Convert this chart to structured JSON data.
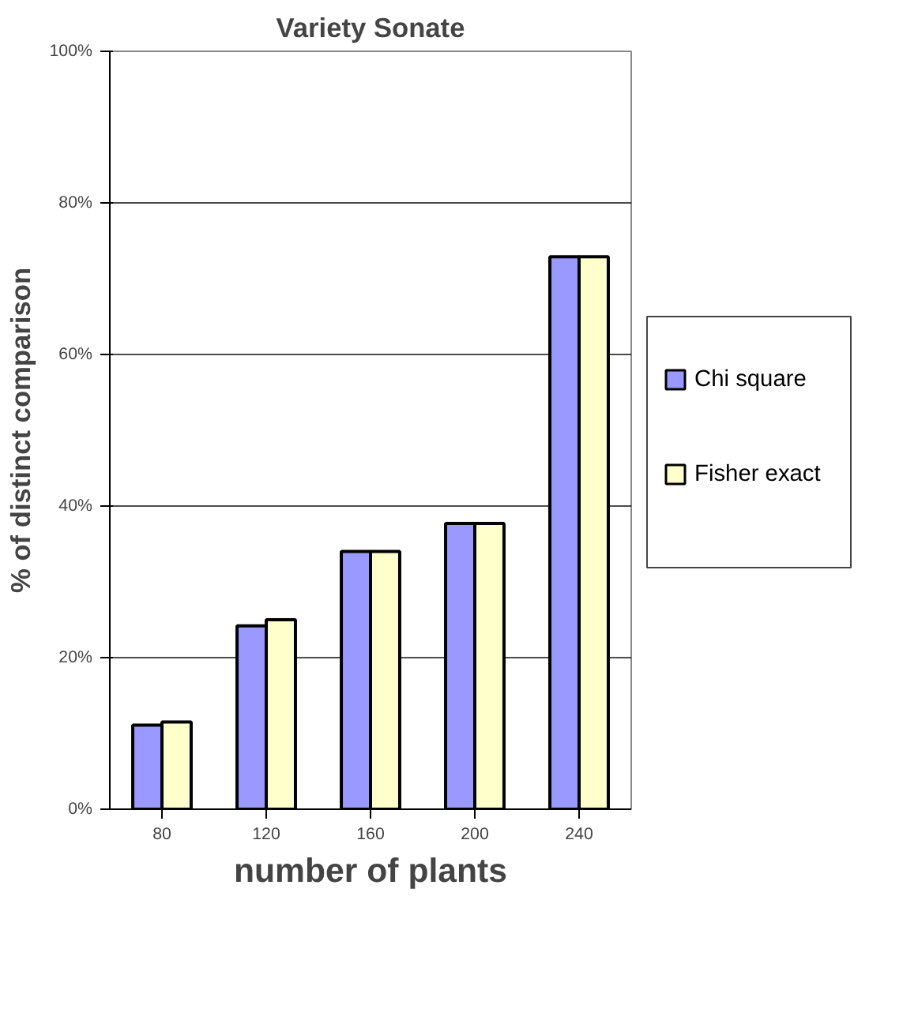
{
  "chart_data": {
    "type": "bar",
    "title": "Variety Sonate",
    "xlabel": "number of plants",
    "ylabel": "% of distinct comparison",
    "categories": [
      "80",
      "120",
      "160",
      "200",
      "240"
    ],
    "series": [
      {
        "name": "Chi square",
        "color": "#9999ff",
        "values": [
          11.1,
          24.2,
          34.0,
          37.7,
          72.9
        ]
      },
      {
        "name": "Fisher exact",
        "color": "#ffffcc",
        "values": [
          11.5,
          25.0,
          34.0,
          37.7,
          72.9
        ]
      }
    ],
    "ylim": [
      0,
      100
    ],
    "yticks": [
      {
        "value": 0,
        "label": "0%"
      },
      {
        "value": 20,
        "label": "20%"
      },
      {
        "value": 40,
        "label": "40%"
      },
      {
        "value": 60,
        "label": "60%"
      },
      {
        "value": 80,
        "label": "80%"
      },
      {
        "value": 100,
        "label": "100%"
      }
    ],
    "grid": "y",
    "legend": "right"
  }
}
